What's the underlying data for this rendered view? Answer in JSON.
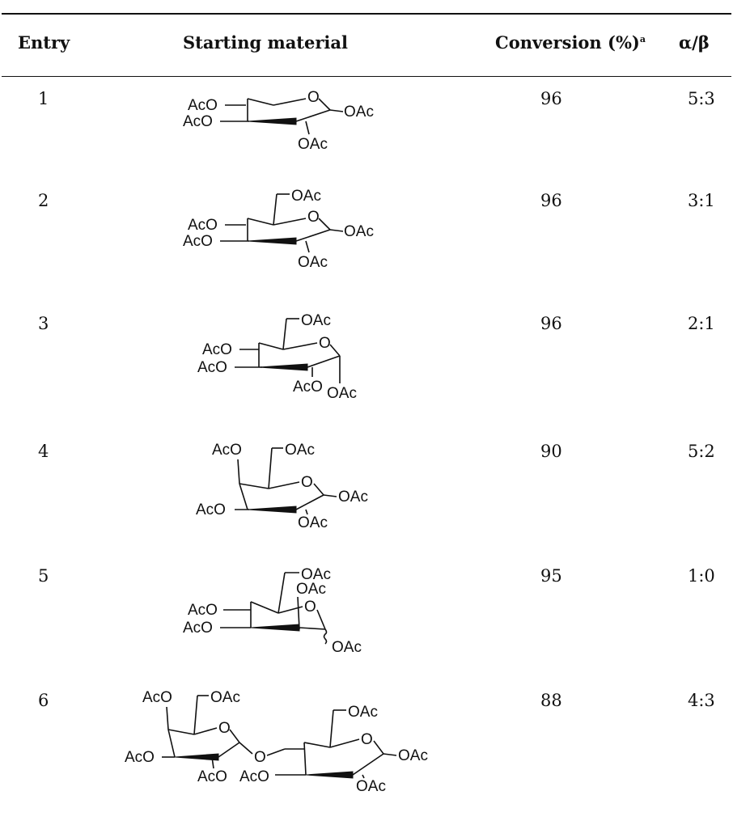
{
  "headers": {
    "entry": "Entry",
    "material": "Starting material",
    "conversion": "Conversion (%)",
    "conversion_note": "a",
    "ratio": "α/β"
  },
  "rows": [
    {
      "entry": "1",
      "conversion": "96",
      "ratio": "5:3",
      "labels": {
        "ring_o": "O",
        "c4": "AcO",
        "c3": "AcO",
        "c2": "OAc",
        "c1": "OAc"
      }
    },
    {
      "entry": "2",
      "conversion": "96",
      "ratio": "3:1",
      "labels": {
        "c6": "OAc",
        "ring_o": "O",
        "c4": "AcO",
        "c3": "AcO",
        "c2": "OAc",
        "c1": "OAc"
      }
    },
    {
      "entry": "3",
      "conversion": "96",
      "ratio": "2:1",
      "labels": {
        "c6": "OAc",
        "ring_o": "O",
        "c4": "AcO",
        "c3": "AcO",
        "c2": "AcO",
        "c1": "OAc"
      }
    },
    {
      "entry": "4",
      "conversion": "90",
      "ratio": "5:2",
      "labels": {
        "c4": "AcO",
        "c6": "OAc",
        "ring_o": "O",
        "c3": "AcO",
        "c2": "OAc",
        "c1": "OAc"
      }
    },
    {
      "entry": "5",
      "conversion": "95",
      "ratio": "1:0",
      "labels": {
        "c6": "OAc",
        "c2": "OAc",
        "ring_o": "O",
        "c4": "AcO",
        "c3": "AcO",
        "c1": "OAc"
      }
    },
    {
      "entry": "6",
      "conversion": "88",
      "ratio": "4:3",
      "labels": {
        "gal_c4": "AcO",
        "gal_c6": "OAc",
        "gal_ring_o": "O",
        "gal_c3": "AcO",
        "gal_c2": "AcO",
        "bridge_o": "O",
        "glc_c6": "OAc",
        "glc_ring_o": "O",
        "glc_c3": "AcO",
        "glc_c2": "OAc",
        "glc_c1": "OAc"
      }
    }
  ]
}
